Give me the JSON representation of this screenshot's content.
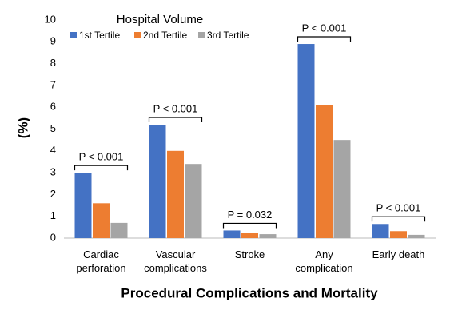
{
  "chart_data": {
    "type": "bar",
    "x_label": "Procedural Complications and Mortality",
    "y_label": "(%)",
    "legend_title": "Hospital Volume",
    "categories": [
      "Cardiac\nperforation",
      "Vascular\ncomplications",
      "Stroke",
      "Any\ncomplication",
      "Early death"
    ],
    "series": [
      {
        "name": "1st Tertile",
        "color": "#4472c4",
        "values": [
          3.0,
          5.2,
          0.35,
          8.9,
          0.65
        ]
      },
      {
        "name": "2nd Tertile",
        "color": "#ed7d31",
        "values": [
          1.6,
          4.0,
          0.25,
          6.1,
          0.32
        ]
      },
      {
        "name": "3rd Tertile",
        "color": "#a5a5a5",
        "values": [
          0.7,
          3.4,
          0.18,
          4.5,
          0.15
        ]
      }
    ],
    "p_values": [
      "P < 0.001",
      "P < 0.001",
      "P = 0.032",
      "P < 0.001",
      "P < 0.001"
    ],
    "ylim": [
      0,
      10
    ],
    "yticks": [
      0,
      1,
      2,
      3,
      4,
      5,
      6,
      7,
      8,
      9,
      10
    ],
    "grid": false
  }
}
